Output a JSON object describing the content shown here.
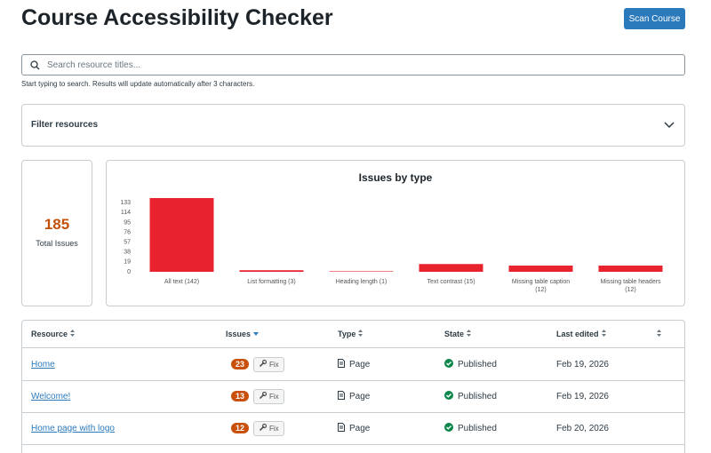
{
  "header": {
    "title": "Course Accessibility Checker",
    "button": "Scan Course"
  },
  "search": {
    "placeholder": "Search resource titles...",
    "hint": "Start typing to search. Results will update automatically after 3 characters."
  },
  "filter": {
    "label": "Filter resources"
  },
  "summary": {
    "total": 185,
    "label": "Total Issues"
  },
  "chart_data": {
    "type": "bar",
    "title": "Issues by type",
    "categories": [
      "All text (142)",
      "List formatting (3)",
      "Heading length (1)",
      "Text contrast (15)",
      "Missing table caption (12)",
      "Missing table headers (12)"
    ],
    "values": [
      142,
      3,
      1,
      15,
      12,
      12
    ],
    "color": "#e8232e",
    "ylim": [
      0,
      142
    ],
    "yticks": [
      0,
      19,
      38,
      57,
      76,
      95,
      114,
      133
    ],
    "grid": false
  },
  "table": {
    "columns": [
      "Resource",
      "Issues",
      "Type",
      "State",
      "Last edited"
    ],
    "fix_label": "Fix",
    "rows": [
      [
        "Home",
        23,
        "Page",
        "Published",
        "Feb 19, 2026"
      ],
      [
        "Welcome!",
        13,
        "Page",
        "Published",
        "Feb 19, 2026"
      ],
      [
        "Home page with logo",
        12,
        "Page",
        "Published",
        "Feb 20, 2026"
      ]
    ]
  }
}
